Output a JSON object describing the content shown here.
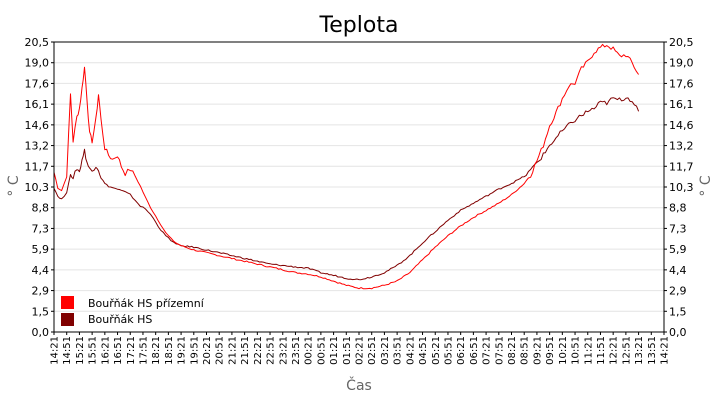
{
  "chart_data": {
    "type": "line",
    "title": "Teplota",
    "xlabel": "Čas",
    "ylabel": "° C",
    "ylim": [
      0,
      20.5
    ],
    "grid": true,
    "legend_position": "bottom-left",
    "y_ticks": [
      "0,0",
      "1,5",
      "2,9",
      "4,4",
      "5,9",
      "7,3",
      "8,8",
      "10,3",
      "11,7",
      "13,2",
      "14,6",
      "16,1",
      "17,6",
      "19,0",
      "20,5"
    ],
    "x_ticks": [
      "14:21",
      "14:51",
      "15:21",
      "15:51",
      "16:21",
      "16:51",
      "17:21",
      "17:51",
      "18:21",
      "18:51",
      "19:21",
      "19:51",
      "20:21",
      "20:51",
      "21:21",
      "21:51",
      "22:21",
      "22:51",
      "23:21",
      "23:51",
      "00:21",
      "00:51",
      "01:21",
      "01:51",
      "02:21",
      "02:51",
      "03:21",
      "03:51",
      "04:21",
      "04:51",
      "05:21",
      "05:51",
      "06:21",
      "06:51",
      "07:21",
      "07:51",
      "08:21",
      "08:51",
      "09:21",
      "09:51",
      "10:21",
      "10:51",
      "11:21",
      "11:51",
      "12:21",
      "12:51",
      "13:21",
      "13:51",
      "14:21"
    ],
    "series": [
      {
        "name": "Bouřňák HS přízemní",
        "color": "#ff0000",
        "points": [
          [
            0,
            11.3
          ],
          [
            0.3,
            10.2
          ],
          [
            0.6,
            10.0
          ],
          [
            1.0,
            11.0
          ],
          [
            1.3,
            16.8
          ],
          [
            1.5,
            13.5
          ],
          [
            1.8,
            15.2
          ],
          [
            2.0,
            15.8
          ],
          [
            2.2,
            17.2
          ],
          [
            2.4,
            18.7
          ],
          [
            2.6,
            16.5
          ],
          [
            2.8,
            14.0
          ],
          [
            3.0,
            13.5
          ],
          [
            3.3,
            15.0
          ],
          [
            3.5,
            16.8
          ],
          [
            3.7,
            15.0
          ],
          [
            4.0,
            13.0
          ],
          [
            4.3,
            12.5
          ],
          [
            4.6,
            12.2
          ],
          [
            5.0,
            12.5
          ],
          [
            5.3,
            11.7
          ],
          [
            5.6,
            11.2
          ],
          [
            6.0,
            11.5
          ],
          [
            6.4,
            11.0
          ],
          [
            6.8,
            10.3
          ],
          [
            7.2,
            9.5
          ],
          [
            7.6,
            8.8
          ],
          [
            8.0,
            8.2
          ],
          [
            8.4,
            7.6
          ],
          [
            8.8,
            7.0
          ],
          [
            9.2,
            6.6
          ],
          [
            9.6,
            6.3
          ],
          [
            10,
            6.1
          ],
          [
            11,
            5.8
          ],
          [
            12,
            5.6
          ],
          [
            13,
            5.4
          ],
          [
            14,
            5.2
          ],
          [
            15,
            5.0
          ],
          [
            16,
            4.8
          ],
          [
            17,
            4.6
          ],
          [
            18,
            4.4
          ],
          [
            19,
            4.2
          ],
          [
            20,
            4.1
          ],
          [
            21,
            3.9
          ],
          [
            22,
            3.6
          ],
          [
            23,
            3.3
          ],
          [
            24,
            3.1
          ],
          [
            25,
            3.1
          ],
          [
            26,
            3.3
          ],
          [
            27,
            3.6
          ],
          [
            28,
            4.2
          ],
          [
            29,
            5.1
          ],
          [
            30,
            6.0
          ],
          [
            31,
            6.8
          ],
          [
            32,
            7.5
          ],
          [
            33,
            8.1
          ],
          [
            34,
            8.6
          ],
          [
            35,
            9.1
          ],
          [
            36,
            9.7
          ],
          [
            37,
            10.5
          ],
          [
            37.5,
            11.1
          ],
          [
            38,
            12.1
          ],
          [
            38.5,
            13.2
          ],
          [
            39,
            14.6
          ],
          [
            39.5,
            15.5
          ],
          [
            40,
            16.5
          ],
          [
            40.5,
            17.4
          ],
          [
            41,
            17.6
          ],
          [
            41.5,
            18.6
          ],
          [
            42,
            19.1
          ],
          [
            42.5,
            19.8
          ],
          [
            43,
            20.1
          ],
          [
            43.5,
            20.3
          ],
          [
            44,
            20.0
          ],
          [
            44.5,
            19.5
          ],
          [
            45,
            19.6
          ],
          [
            45.5,
            19.0
          ],
          [
            46,
            18.2
          ]
        ]
      },
      {
        "name": "Bouřňák HS",
        "color": "#800000",
        "points": [
          [
            0,
            10.2
          ],
          [
            0.3,
            9.6
          ],
          [
            0.6,
            9.4
          ],
          [
            1.0,
            9.8
          ],
          [
            1.3,
            11.3
          ],
          [
            1.5,
            10.8
          ],
          [
            1.8,
            11.6
          ],
          [
            2.0,
            11.3
          ],
          [
            2.2,
            12.2
          ],
          [
            2.4,
            12.8
          ],
          [
            2.6,
            12.0
          ],
          [
            2.8,
            11.5
          ],
          [
            3.0,
            11.4
          ],
          [
            3.3,
            11.8
          ],
          [
            3.5,
            11.5
          ],
          [
            3.7,
            10.9
          ],
          [
            4.0,
            10.5
          ],
          [
            4.3,
            10.3
          ],
          [
            4.6,
            10.2
          ],
          [
            5.0,
            10.1
          ],
          [
            5.3,
            10.0
          ],
          [
            5.6,
            9.9
          ],
          [
            6.0,
            9.7
          ],
          [
            6.4,
            9.3
          ],
          [
            6.8,
            8.9
          ],
          [
            7.2,
            8.7
          ],
          [
            7.6,
            8.3
          ],
          [
            8.0,
            7.8
          ],
          [
            8.4,
            7.2
          ],
          [
            8.8,
            6.8
          ],
          [
            9.2,
            6.5
          ],
          [
            9.6,
            6.2
          ],
          [
            10,
            6.1
          ],
          [
            11,
            6.0
          ],
          [
            12,
            5.8
          ],
          [
            13,
            5.6
          ],
          [
            14,
            5.4
          ],
          [
            15,
            5.2
          ],
          [
            16,
            5.0
          ],
          [
            17,
            4.8
          ],
          [
            18,
            4.7
          ],
          [
            19,
            4.6
          ],
          [
            20,
            4.5
          ],
          [
            21,
            4.2
          ],
          [
            22,
            4.0
          ],
          [
            23,
            3.8
          ],
          [
            24,
            3.7
          ],
          [
            25,
            3.9
          ],
          [
            26,
            4.2
          ],
          [
            27,
            4.7
          ],
          [
            28,
            5.4
          ],
          [
            29,
            6.3
          ],
          [
            30,
            7.1
          ],
          [
            31,
            7.9
          ],
          [
            32,
            8.6
          ],
          [
            33,
            9.1
          ],
          [
            34,
            9.6
          ],
          [
            35,
            10.1
          ],
          [
            36,
            10.5
          ],
          [
            37,
            11.0
          ],
          [
            37.5,
            11.4
          ],
          [
            38,
            12.0
          ],
          [
            38.5,
            12.5
          ],
          [
            39,
            13.2
          ],
          [
            39.5,
            13.7
          ],
          [
            40,
            14.2
          ],
          [
            40.5,
            14.6
          ],
          [
            41,
            15.0
          ],
          [
            41.5,
            15.3
          ],
          [
            42,
            15.6
          ],
          [
            42.5,
            15.8
          ],
          [
            43,
            16.2
          ],
          [
            43.5,
            16.2
          ],
          [
            44,
            16.5
          ],
          [
            44.5,
            16.4
          ],
          [
            45,
            16.6
          ],
          [
            45.5,
            16.4
          ],
          [
            46,
            15.6
          ]
        ]
      }
    ]
  }
}
